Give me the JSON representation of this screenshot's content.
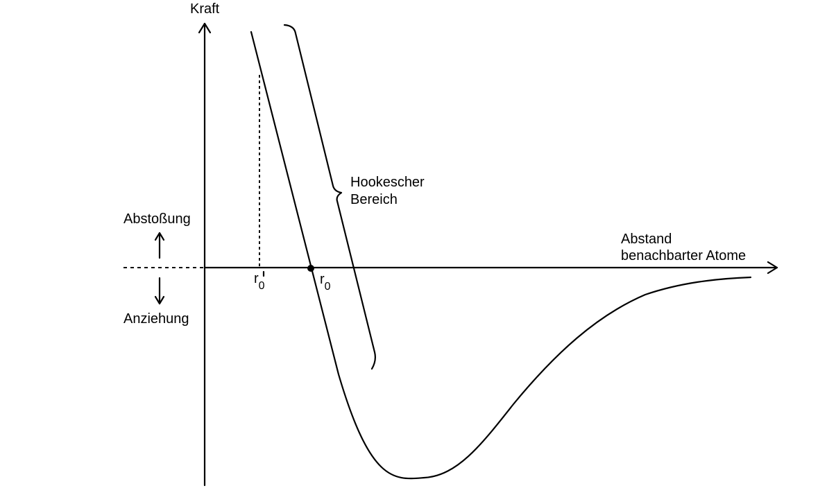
{
  "labels": {
    "y_axis": "Kraft",
    "x_axis_line1": "Abstand",
    "x_axis_line2": "benachbarter Atome",
    "repulsion": "Abstoßung",
    "attraction": "Anziehung",
    "hooke_line1": "Hookescher",
    "hooke_line2": "Bereich",
    "r_symbol": "r",
    "r_subscript": "0"
  },
  "colors": {
    "ink": "#000000",
    "background": "#ffffff"
  },
  "icons": {
    "repulsion_arrow": "arrow-up-icon",
    "attraction_arrow": "arrow-down-icon"
  }
}
